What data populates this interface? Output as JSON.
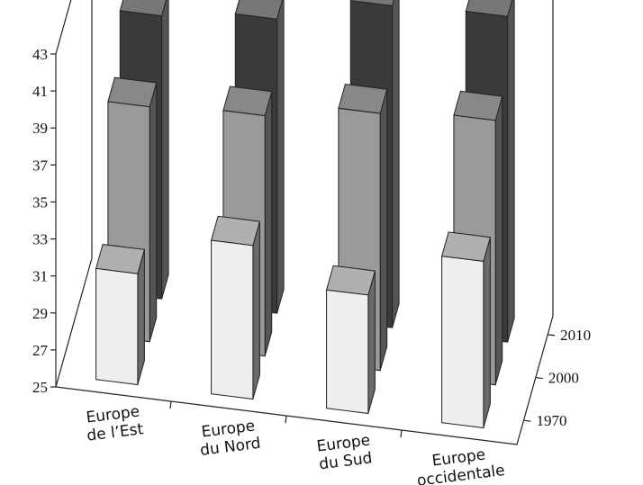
{
  "chart_data": {
    "type": "bar",
    "title": "",
    "xlabel": "",
    "ylabel": "",
    "ylim": [
      25,
      43
    ],
    "yticks": [
      25,
      27,
      29,
      31,
      33,
      35,
      37,
      39,
      41,
      43
    ],
    "categories": [
      "Europe de l’Est",
      "Europe du Nord",
      "Europe du Sud",
      "Europe occidentale"
    ],
    "category_lines": [
      [
        "Europe",
        "de l’Est"
      ],
      [
        "Europe",
        "du Nord"
      ],
      [
        "Europe",
        "du Sud"
      ],
      [
        "Europe",
        "occidentale"
      ]
    ],
    "series": [
      {
        "name": "1970",
        "values": [
          31.0,
          33.3,
          31.4,
          34.0
        ]
      },
      {
        "name": "2000",
        "values": [
          37.7,
          38.0,
          38.9,
          39.3
        ]
      },
      {
        "name": "2010",
        "values": [
          40.3,
          40.9,
          42.4,
          42.6
        ]
      }
    ],
    "colors": {
      "1970": {
        "front": "#eeeeee",
        "top": "#b0b0b0",
        "side": "#6a6a6a"
      },
      "2000": {
        "front": "#9a9a9a",
        "top": "#888888",
        "side": "#555555"
      },
      "2010": {
        "front": "#3a3a3a",
        "top": "#777777",
        "side": "#555555"
      }
    }
  }
}
